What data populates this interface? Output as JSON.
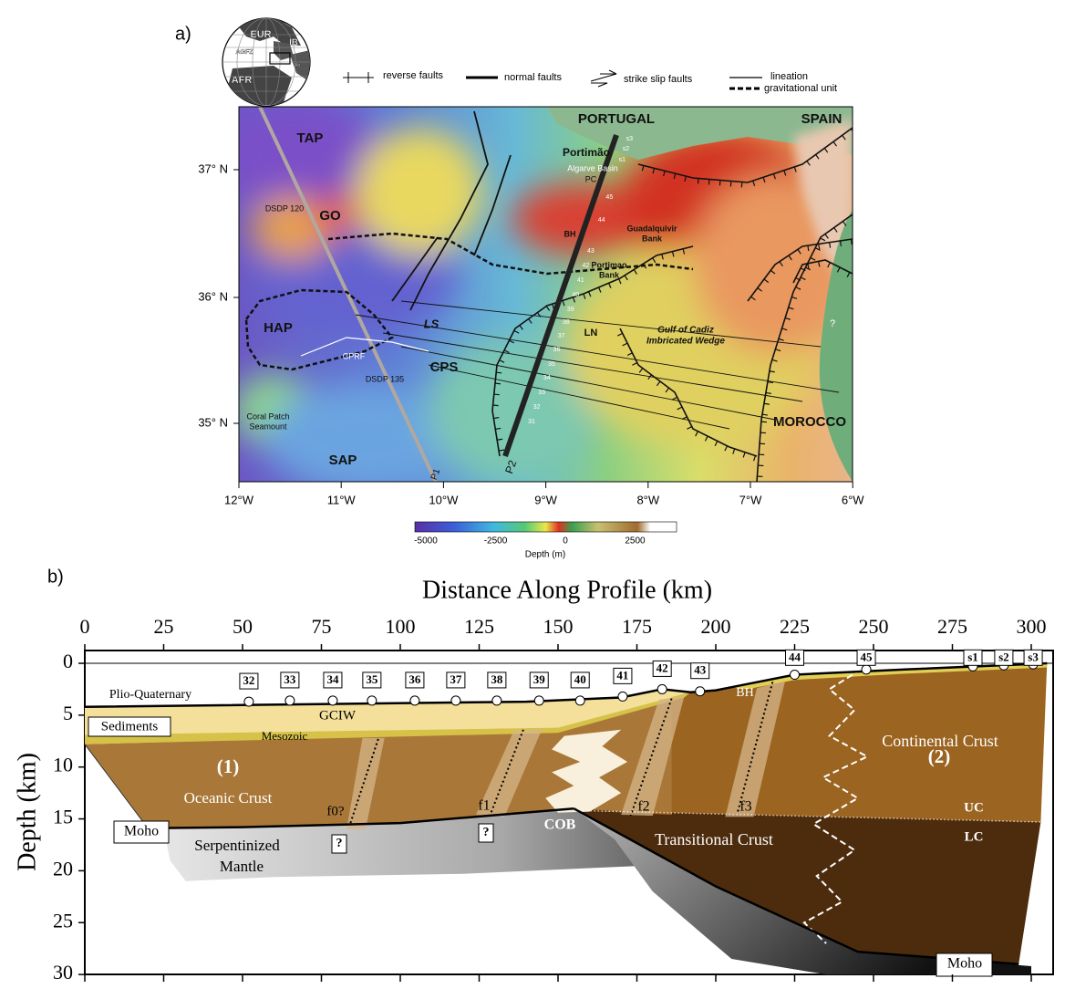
{
  "panel_a": {
    "label": "a)",
    "globe_labels": [
      "EUR",
      "IB",
      "AGFZ",
      "AFR",
      "At"
    ],
    "legend": [
      "reverse faults",
      "normal faults",
      "strike slip faults",
      "lineation",
      "gravitational unit"
    ],
    "map_labels": [
      "TAP",
      "GO",
      "DSDP 120",
      "HAP",
      "LS",
      "CPRF",
      "DSDP 135",
      "CPS",
      "Coral Patch",
      "Seamount",
      "SAP",
      "PORTUGAL",
      "SPAIN",
      "Portimão",
      "Algarve Basin",
      "PC",
      "BH",
      "Guadalquivir",
      "Bank",
      "Portimao",
      "Bank",
      "LN",
      "Gulf of Cadiz",
      "Imbricated Wedge",
      "MOROCCO",
      "?",
      "P1",
      "P2"
    ],
    "stations": [
      "s3",
      "s2",
      "s1",
      "45",
      "44",
      "43",
      "42",
      "41",
      "40",
      "39",
      "38",
      "37",
      "36",
      "35",
      "34",
      "33",
      "32",
      "31"
    ],
    "lat_ticks": [
      "37° N",
      "36° N",
      "35° N"
    ],
    "lon_ticks": [
      "12°W",
      "11°W",
      "10°W",
      "9°W",
      "8°W",
      "7°W",
      "6°W"
    ],
    "colorbar": {
      "ticks": [
        -5000,
        -2500,
        0,
        2500
      ],
      "label": "Depth (m)"
    }
  },
  "panel_b": {
    "label": "b)",
    "title": "Distance Along Profile (km)",
    "y_label": "Depth (km)",
    "x_ticks": [
      0,
      25,
      50,
      75,
      100,
      125,
      150,
      175,
      200,
      225,
      250,
      275,
      300
    ],
    "y_ticks": [
      0,
      5,
      10,
      15,
      20,
      25,
      30
    ],
    "stations": [
      "32",
      "33",
      "34",
      "35",
      "36",
      "37",
      "38",
      "39",
      "40",
      "41",
      "42",
      "43",
      "44",
      "45",
      "s1",
      "s2",
      "s3"
    ],
    "labels": [
      "Plio-Quaternary",
      "GCIW",
      "Sediments",
      "Mesozoic",
      "(1)",
      "Oceanic Crust",
      "f0?",
      "f1",
      "f2",
      "f3",
      "?",
      "?",
      "Moho",
      "Serpentinized",
      "Mantle",
      "COB",
      "Transitional Crust",
      "BH",
      "(2)",
      "Continental Crust",
      "UC",
      "LC",
      "Moho"
    ]
  }
}
